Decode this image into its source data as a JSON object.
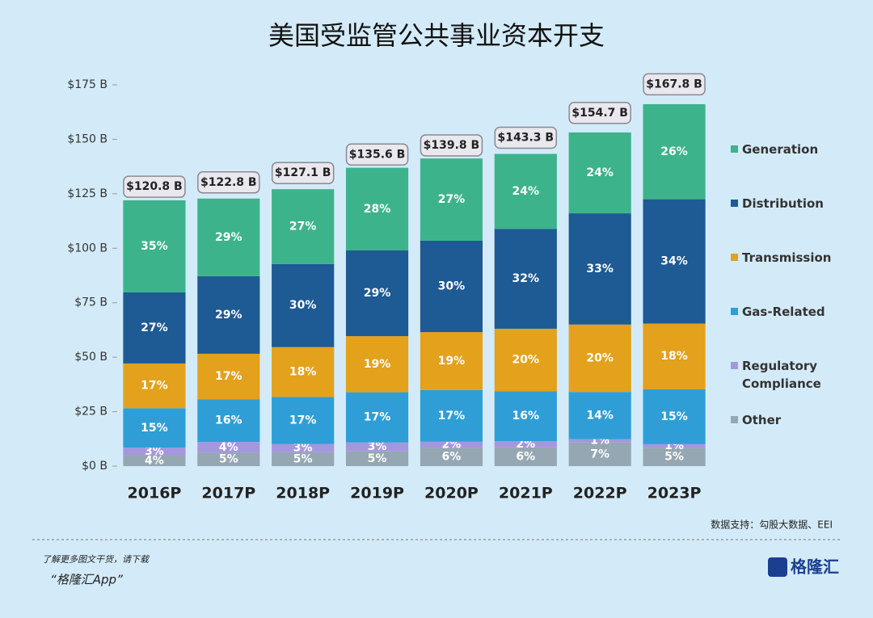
{
  "chart_data": {
    "type": "stacked_bar",
    "title": "美国受监管公共事业资本开支",
    "categories": [
      "2016P",
      "2017P",
      "2018P",
      "2019P",
      "2020P",
      "2021P",
      "2022P",
      "2023P"
    ],
    "series": [
      {
        "name": "Other",
        "color": "#95a7b2",
        "values": [
          4,
          5,
          5,
          5,
          6,
          6,
          7,
          5
        ],
        "value_labels": [
          "4%",
          "5%",
          "5%",
          "5%",
          "6%",
          "6%",
          "7%",
          "5%"
        ]
      },
      {
        "name": "Regulatory Compliance",
        "color": "#a597dd",
        "values": [
          3,
          4,
          3,
          3,
          2,
          2,
          1,
          1
        ],
        "value_labels": [
          "3%",
          "4%",
          "3%",
          "3%",
          "2%",
          "2%",
          "1%",
          "1%"
        ]
      },
      {
        "name": "Gas-Related",
        "color": "#2f9ed6",
        "values": [
          15,
          16,
          17,
          17,
          17,
          16,
          14,
          15
        ],
        "value_labels": [
          "15%",
          "16%",
          "17%",
          "17%",
          "17%",
          "16%",
          "14%",
          "15%"
        ]
      },
      {
        "name": "Transmission",
        "color": "#e3a11c",
        "values": [
          17,
          17,
          18,
          19,
          19,
          20,
          20,
          18
        ],
        "value_labels": [
          "17%",
          "17%",
          "18%",
          "19%",
          "19%",
          "20%",
          "20%",
          "18%"
        ]
      },
      {
        "name": "Distribution",
        "color": "#1e5a93",
        "values": [
          27,
          29,
          30,
          29,
          30,
          32,
          33,
          34
        ],
        "value_labels": [
          "27%",
          "29%",
          "30%",
          "29%",
          "30%",
          "32%",
          "33%",
          "34%"
        ]
      },
      {
        "name": "Generation",
        "color": "#3db38c",
        "values": [
          35,
          29,
          27,
          28,
          27,
          24,
          24,
          26
        ],
        "value_labels": [
          "35%",
          "29%",
          "27%",
          "28%",
          "27%",
          "24%",
          "24%",
          "26%"
        ]
      }
    ],
    "totals": {
      "values": [
        120.8,
        122.8,
        127.1,
        135.6,
        139.8,
        143.3,
        154.7,
        167.8
      ],
      "value_labels": [
        "$120.8 B",
        "$122.8 B",
        "$127.1 B",
        "$135.6 B",
        "$139.8 B",
        "$143.3 B",
        "$154.7 B",
        "$167.8 B"
      ]
    },
    "ylim": [
      0,
      175
    ],
    "yticks": [
      {
        "value": 0,
        "label": "$0 B"
      },
      {
        "value": 25,
        "label": "$25 B"
      },
      {
        "value": 50,
        "label": "$50 B"
      },
      {
        "value": 75,
        "label": "$75 B"
      },
      {
        "value": 100,
        "label": "$100 B"
      },
      {
        "value": 125,
        "label": "$125 B"
      },
      {
        "value": 150,
        "label": "$150 B"
      },
      {
        "value": 175,
        "label": "$175 B"
      }
    ],
    "legend": "right",
    "grid": false
  },
  "source": "数据支持：勾股大数据、EEI",
  "footer": {
    "line1": "了解更多图文干货，请下载",
    "line2": "“格隆汇App”",
    "logo": "格隆汇"
  }
}
